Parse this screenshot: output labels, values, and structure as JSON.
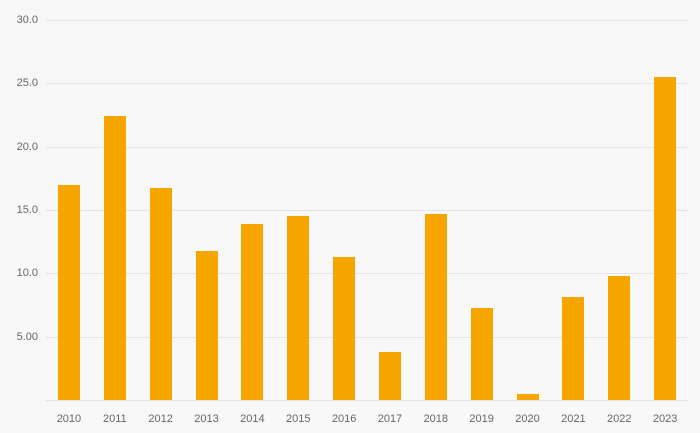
{
  "chart_data": {
    "type": "bar",
    "title": "",
    "xlabel": "",
    "ylabel": "",
    "categories": [
      "2010",
      "2011",
      "2012",
      "2013",
      "2014",
      "2015",
      "2016",
      "2017",
      "2018",
      "2019",
      "2020",
      "2021",
      "2022",
      "2023"
    ],
    "values": [
      17.0,
      22.4,
      16.7,
      11.8,
      13.9,
      14.5,
      11.3,
      3.8,
      14.7,
      7.3,
      0.5,
      8.1,
      9.8,
      25.5
    ],
    "ylim": [
      0,
      30
    ],
    "yticks": [
      {
        "value": 30,
        "label": "30.0"
      },
      {
        "value": 25,
        "label": "25.0"
      },
      {
        "value": 20,
        "label": "20.0"
      },
      {
        "value": 15,
        "label": "15.0"
      },
      {
        "value": 10,
        "label": "10.0"
      },
      {
        "value": 5,
        "label": "5.00"
      },
      {
        "value": 0,
        "label": ""
      }
    ],
    "grid": true,
    "legend": "none",
    "colors": {
      "bar": "#f7a600",
      "background": "#f8f8f8",
      "gridline": "#e4e4e4",
      "tick_text": "#666666"
    }
  }
}
